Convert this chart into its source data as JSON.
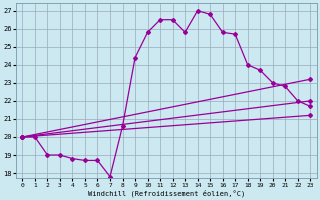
{
  "xlabel": "Windchill (Refroidissement éolien,°C)",
  "bg_color": "#cce8f0",
  "grid_color": "#99aabb",
  "line_color": "#990099",
  "xlim": [
    -0.5,
    23.5
  ],
  "ylim": [
    17.7,
    27.4
  ],
  "yticks": [
    18,
    19,
    20,
    21,
    22,
    23,
    24,
    25,
    26,
    27
  ],
  "xticks": [
    0,
    1,
    2,
    3,
    4,
    5,
    6,
    7,
    8,
    9,
    10,
    11,
    12,
    13,
    14,
    15,
    16,
    17,
    18,
    19,
    20,
    21,
    22,
    23
  ],
  "line1_x": [
    0,
    1,
    2,
    3,
    4,
    5,
    6,
    7,
    8,
    9,
    10,
    11,
    12,
    13,
    14,
    15,
    16,
    17,
    18,
    19,
    20,
    21,
    22,
    23
  ],
  "line1_y": [
    20.0,
    20.0,
    19.0,
    19.0,
    18.8,
    18.7,
    18.7,
    17.8,
    20.6,
    24.4,
    25.8,
    26.5,
    26.5,
    25.8,
    27.0,
    26.8,
    25.8,
    25.7,
    24.0,
    23.7,
    23.0,
    22.8,
    22.0,
    21.7
  ],
  "trend1_x": [
    0,
    23
  ],
  "trend1_y": [
    20.0,
    23.2
  ],
  "trend2_x": [
    0,
    23
  ],
  "trend2_y": [
    20.0,
    22.0
  ],
  "trend3_x": [
    0,
    23
  ],
  "trend3_y": [
    20.0,
    21.2
  ]
}
